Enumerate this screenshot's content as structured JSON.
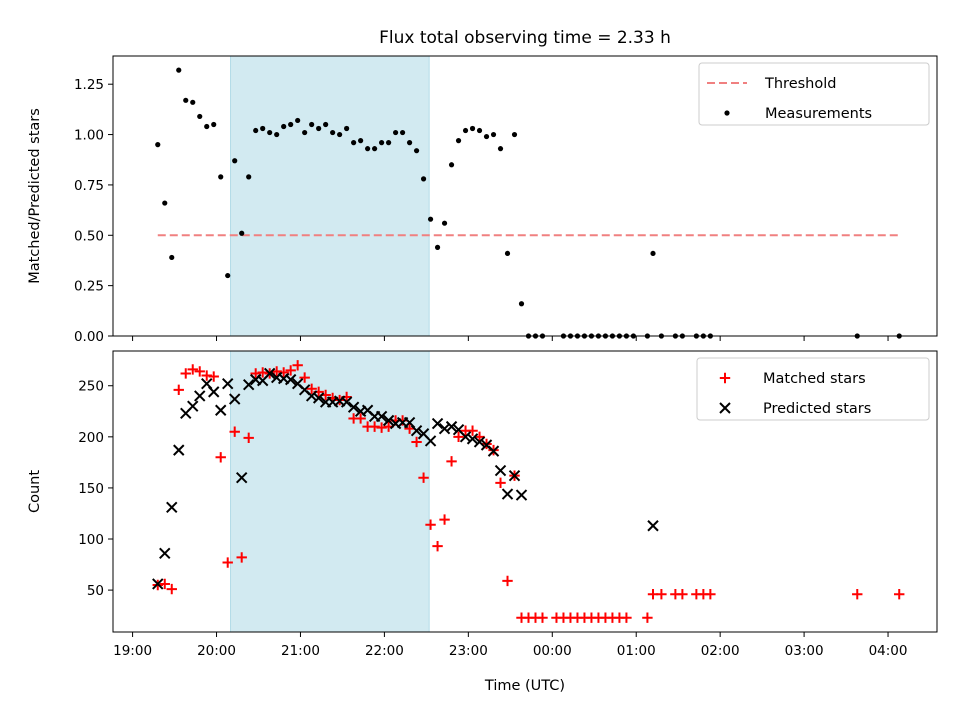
{
  "title": "Flux total observing time = 2.33 h",
  "colors": {
    "threshold": "#f08080",
    "measurements": "#000000",
    "matched": "#ff0000",
    "predicted": "#000000",
    "span": "#add8e6"
  },
  "chart_data": [
    {
      "type": "scatter",
      "ylabel": "Matched/Predicted stars",
      "ylim": [
        0,
        1.39
      ],
      "yticks": [
        "0.00",
        "0.25",
        "0.50",
        "0.75",
        "1.00",
        "1.25"
      ],
      "legend_position": "top-right",
      "highlight_span": [
        "20:10",
        "22:32"
      ],
      "threshold": {
        "name": "Threshold",
        "value": 0.5,
        "x_range": [
          "19:18",
          "04:08"
        ]
      },
      "series": [
        {
          "name": "Measurements",
          "points": [
            [
              "19:18",
              0.95
            ],
            [
              "19:23",
              0.66
            ],
            [
              "19:28",
              0.39
            ],
            [
              "19:33",
              1.32
            ],
            [
              "19:38",
              1.17
            ],
            [
              "19:43",
              1.16
            ],
            [
              "19:48",
              1.09
            ],
            [
              "19:53",
              1.04
            ],
            [
              "19:58",
              1.05
            ],
            [
              "20:03",
              0.79
            ],
            [
              "20:08",
              0.3
            ],
            [
              "20:13",
              0.87
            ],
            [
              "20:18",
              0.51
            ],
            [
              "20:23",
              0.79
            ],
            [
              "20:28",
              1.02
            ],
            [
              "20:33",
              1.03
            ],
            [
              "20:38",
              1.01
            ],
            [
              "20:43",
              1.0
            ],
            [
              "20:48",
              1.04
            ],
            [
              "20:53",
              1.05
            ],
            [
              "20:58",
              1.07
            ],
            [
              "21:03",
              1.01
            ],
            [
              "21:08",
              1.05
            ],
            [
              "21:13",
              1.03
            ],
            [
              "21:18",
              1.05
            ],
            [
              "21:23",
              1.01
            ],
            [
              "21:28",
              1.0
            ],
            [
              "21:33",
              1.03
            ],
            [
              "21:38",
              0.96
            ],
            [
              "21:43",
              0.97
            ],
            [
              "21:48",
              0.93
            ],
            [
              "21:53",
              0.93
            ],
            [
              "21:58",
              0.96
            ],
            [
              "22:03",
              0.96
            ],
            [
              "22:08",
              1.01
            ],
            [
              "22:13",
              1.01
            ],
            [
              "22:18",
              0.96
            ],
            [
              "22:23",
              0.92
            ],
            [
              "22:28",
              0.78
            ],
            [
              "22:33",
              0.58
            ],
            [
              "22:38",
              0.44
            ],
            [
              "22:43",
              0.56
            ],
            [
              "22:48",
              0.85
            ],
            [
              "22:53",
              0.97
            ],
            [
              "22:58",
              1.02
            ],
            [
              "23:03",
              1.03
            ],
            [
              "23:08",
              1.02
            ],
            [
              "23:13",
              0.99
            ],
            [
              "23:18",
              1.0
            ],
            [
              "23:23",
              0.93
            ],
            [
              "23:28",
              0.41
            ],
            [
              "23:33",
              1.0
            ],
            [
              "23:38",
              0.16
            ],
            [
              "23:43",
              0.0
            ],
            [
              "23:48",
              0.0
            ],
            [
              "23:53",
              0.0
            ],
            [
              "00:08",
              0.0
            ],
            [
              "00:13",
              0.0
            ],
            [
              "00:18",
              0.0
            ],
            [
              "00:23",
              0.0
            ],
            [
              "00:28",
              0.0
            ],
            [
              "00:33",
              0.0
            ],
            [
              "00:38",
              0.0
            ],
            [
              "00:43",
              0.0
            ],
            [
              "00:48",
              0.0
            ],
            [
              "00:53",
              0.0
            ],
            [
              "00:58",
              0.0
            ],
            [
              "01:08",
              0.0
            ],
            [
              "01:12",
              0.41
            ],
            [
              "01:18",
              0.0
            ],
            [
              "01:28",
              0.0
            ],
            [
              "01:33",
              0.0
            ],
            [
              "01:43",
              0.0
            ],
            [
              "01:48",
              0.0
            ],
            [
              "01:53",
              0.0
            ],
            [
              "03:38",
              0.0
            ],
            [
              "04:08",
              0.0
            ]
          ]
        }
      ]
    },
    {
      "type": "scatter",
      "ylabel": "Count",
      "xlabel": "Time (UTC)",
      "ylim": [
        9,
        284
      ],
      "yticks": [
        "50",
        "100",
        "150",
        "200",
        "250"
      ],
      "xticks": [
        "19:00",
        "20:00",
        "21:00",
        "22:00",
        "23:00",
        "00:00",
        "01:00",
        "02:00",
        "03:00",
        "04:00"
      ],
      "legend_position": "top-right",
      "highlight_span": [
        "20:10",
        "22:32"
      ],
      "series": [
        {
          "name": "Matched stars",
          "marker": "plus",
          "points": [
            [
              "19:18",
              55
            ],
            [
              "19:23",
              56
            ],
            [
              "19:28",
              51
            ],
            [
              "19:33",
              246
            ],
            [
              "19:38",
              262
            ],
            [
              "19:43",
              266
            ],
            [
              "19:48",
              264
            ],
            [
              "19:53",
              260
            ],
            [
              "19:58",
              259
            ],
            [
              "20:03",
              180
            ],
            [
              "20:08",
              77
            ],
            [
              "20:13",
              205
            ],
            [
              "20:18",
              82
            ],
            [
              "20:23",
              199
            ],
            [
              "20:28",
              262
            ],
            [
              "20:33",
              263
            ],
            [
              "20:38",
              262
            ],
            [
              "20:43",
              264
            ],
            [
              "20:48",
              263
            ],
            [
              "20:53",
              265
            ],
            [
              "20:58",
              270
            ],
            [
              "21:03",
              258
            ],
            [
              "21:08",
              247
            ],
            [
              "21:13",
              244
            ],
            [
              "21:18",
              241
            ],
            [
              "21:23",
              238
            ],
            [
              "21:28",
              236
            ],
            [
              "21:33",
              239
            ],
            [
              "21:38",
              218
            ],
            [
              "21:43",
              218
            ],
            [
              "21:48",
              210
            ],
            [
              "21:53",
              210
            ],
            [
              "21:58",
              209
            ],
            [
              "22:03",
              210
            ],
            [
              "22:08",
              216
            ],
            [
              "22:13",
              216
            ],
            [
              "22:18",
              208
            ],
            [
              "22:23",
              195
            ],
            [
              "22:28",
              160
            ],
            [
              "22:33",
              114
            ],
            [
              "22:38",
              93
            ],
            [
              "22:43",
              119
            ],
            [
              "22:48",
              176
            ],
            [
              "22:53",
              200
            ],
            [
              "22:58",
              206
            ],
            [
              "23:03",
              206
            ],
            [
              "23:08",
              200
            ],
            [
              "23:13",
              193
            ],
            [
              "23:18",
              187
            ],
            [
              "23:23",
              155
            ],
            [
              "23:28",
              59
            ],
            [
              "23:33",
              162
            ],
            [
              "23:38",
              23
            ],
            [
              "23:43",
              23
            ],
            [
              "23:48",
              23
            ],
            [
              "23:53",
              23
            ],
            [
              "00:03",
              23
            ],
            [
              "00:08",
              23
            ],
            [
              "00:13",
              23
            ],
            [
              "00:18",
              23
            ],
            [
              "00:23",
              23
            ],
            [
              "00:28",
              23
            ],
            [
              "00:33",
              23
            ],
            [
              "00:38",
              23
            ],
            [
              "00:43",
              23
            ],
            [
              "00:48",
              23
            ],
            [
              "00:53",
              23
            ],
            [
              "01:08",
              23
            ],
            [
              "01:12",
              46
            ],
            [
              "01:18",
              46
            ],
            [
              "01:28",
              46
            ],
            [
              "01:33",
              46
            ],
            [
              "01:43",
              46
            ],
            [
              "01:48",
              46
            ],
            [
              "01:53",
              46
            ],
            [
              "03:38",
              46
            ],
            [
              "04:08",
              46
            ]
          ]
        },
        {
          "name": "Predicted stars",
          "marker": "x",
          "points": [
            [
              "19:18",
              56
            ],
            [
              "19:23",
              86
            ],
            [
              "19:28",
              131
            ],
            [
              "19:33",
              187
            ],
            [
              "19:38",
              223
            ],
            [
              "19:43",
              230
            ],
            [
              "19:48",
              240
            ],
            [
              "19:53",
              252
            ],
            [
              "19:58",
              244
            ],
            [
              "20:03",
              226
            ],
            [
              "20:08",
              252
            ],
            [
              "20:13",
              237
            ],
            [
              "20:18",
              160
            ],
            [
              "20:23",
              251
            ],
            [
              "20:28",
              256
            ],
            [
              "20:33",
              255
            ],
            [
              "20:38",
              262
            ],
            [
              "20:43",
              258
            ],
            [
              "20:48",
              257
            ],
            [
              "20:53",
              256
            ],
            [
              "20:58",
              252
            ],
            [
              "21:03",
              246
            ],
            [
              "21:08",
              240
            ],
            [
              "21:13",
              238
            ],
            [
              "21:18",
              234
            ],
            [
              "21:23",
              234
            ],
            [
              "21:28",
              235
            ],
            [
              "21:33",
              234
            ],
            [
              "21:38",
              229
            ],
            [
              "21:43",
              225
            ],
            [
              "21:48",
              226
            ],
            [
              "21:53",
              220
            ],
            [
              "21:58",
              220
            ],
            [
              "22:03",
              216
            ],
            [
              "22:08",
              213
            ],
            [
              "22:13",
              214
            ],
            [
              "22:18",
              214
            ],
            [
              "22:23",
              206
            ],
            [
              "22:28",
              203
            ],
            [
              "22:33",
              196
            ],
            [
              "22:38",
              213
            ],
            [
              "22:43",
              208
            ],
            [
              "22:48",
              210
            ],
            [
              "22:53",
              207
            ],
            [
              "22:58",
              200
            ],
            [
              "23:03",
              198
            ],
            [
              "23:08",
              195
            ],
            [
              "23:13",
              192
            ],
            [
              "23:18",
              186
            ],
            [
              "23:23",
              167
            ],
            [
              "23:28",
              144
            ],
            [
              "23:33",
              162
            ],
            [
              "23:38",
              143
            ],
            [
              "01:12",
              113
            ]
          ]
        }
      ]
    }
  ]
}
